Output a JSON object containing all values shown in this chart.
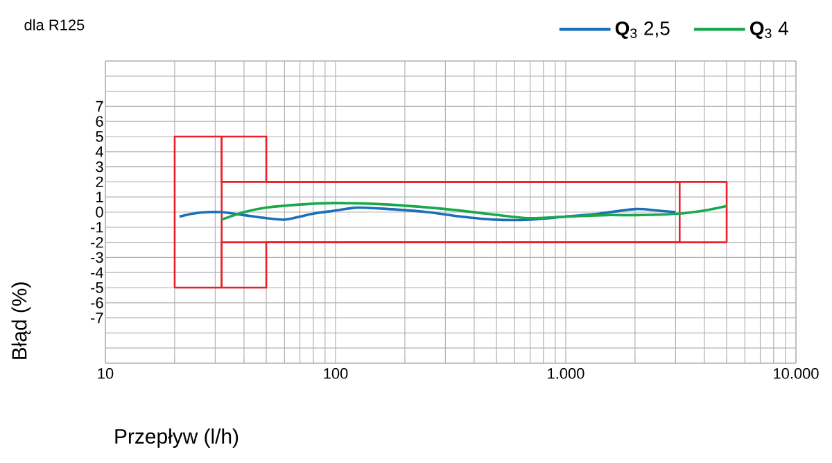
{
  "chart_data": {
    "type": "line",
    "annotations": [
      "dla R125"
    ],
    "xlabel": "Przepływ (l/h)",
    "ylabel": "Błąd (%)",
    "log": "x",
    "grid": true,
    "legend": "top right",
    "marker": "none",
    "line_style": "solid",
    "xlim": [
      10,
      10000
    ],
    "ylim": [
      -10,
      10
    ],
    "xticks": [
      10,
      100,
      {
        "value": 1000,
        "label": "1.000"
      },
      {
        "value": 10000,
        "label": "10.000"
      }
    ],
    "yticks": [
      {
        "value": -10,
        "label": null
      },
      {
        "value": -9,
        "label": null
      },
      {
        "value": -8,
        "label": null
      },
      -7,
      -6,
      -5,
      -4,
      -3,
      -2,
      -1,
      0,
      1,
      2,
      3,
      4,
      5,
      6,
      7,
      {
        "value": 8,
        "label": null
      },
      {
        "value": 9,
        "label": null
      },
      {
        "value": 10,
        "label": null
      }
    ],
    "series": [
      {
        "type": "step",
        "color": "#e8202a",
        "x": [
          20,
          20,
          32,
          3125,
          3125
        ],
        "values": [
          -5,
          5,
          2,
          2,
          -2
        ]
      },
      {
        "type": "step",
        "color": "#e8202a",
        "x": [
          20,
          32,
          3125
        ],
        "values": [
          -5,
          -2,
          -2
        ]
      },
      {
        "type": "step",
        "color": "#e8202a",
        "x": [
          32,
          32,
          50,
          5000,
          5000
        ],
        "values": [
          -5,
          5,
          2,
          2,
          -2
        ]
      },
      {
        "type": "step",
        "color": "#e8202a",
        "x": [
          32,
          50,
          5000
        ],
        "values": [
          -5,
          -2,
          -2
        ]
      },
      {
        "name": "**Q**$_{3}$ 2,5",
        "color": "#1a6fb8",
        "x": [
          21,
          24,
          28,
          32,
          40,
          50,
          60,
          70,
          80,
          100,
          125,
          170,
          250,
          350,
          490,
          700,
          1000,
          1400,
          2000,
          2500,
          3000
        ],
        "values": [
          -0.3,
          -0.1,
          0,
          0,
          -0.2,
          -0.4,
          -0.5,
          -0.3,
          -0.1,
          0.1,
          0.3,
          0.2,
          0,
          -0.3,
          -0.5,
          -0.5,
          -0.3,
          -0.1,
          0.2,
          0.1,
          0
        ]
      },
      {
        "name": "**Q**$_{3}$ 4",
        "color": "#19a84c",
        "x": [
          32,
          40,
          50,
          70,
          100,
          170,
          300,
          450,
          680,
          1000,
          1500,
          2000,
          3125,
          4000,
          5000
        ],
        "values": [
          -0.5,
          0,
          0.3,
          0.5,
          0.6,
          0.5,
          0.2,
          -0.1,
          -0.4,
          -0.3,
          -0.2,
          -0.2,
          -0.1,
          0.1,
          0.4
        ]
      }
    ]
  }
}
